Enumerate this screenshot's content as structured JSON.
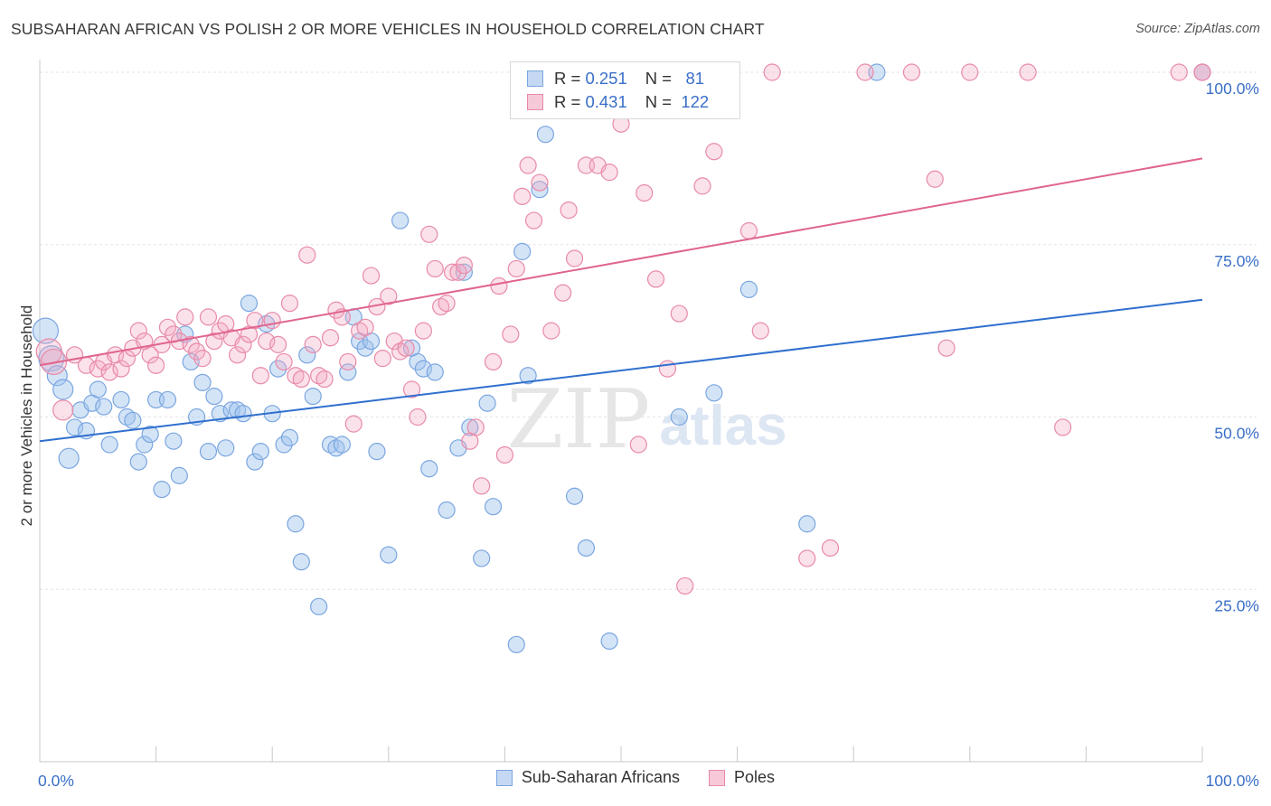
{
  "chart_data": {
    "type": "scatter",
    "title": "SUBSAHARAN AFRICAN VS POLISH 2 OR MORE VEHICLES IN HOUSEHOLD CORRELATION CHART",
    "source": "Source: ZipAtlas.com",
    "xlabel": "",
    "ylabel": "2 or more Vehicles in Household",
    "xlim": [
      0,
      100
    ],
    "ylim": [
      0,
      103
    ],
    "x_tick_labels": [
      "0.0%",
      "100.0%"
    ],
    "y_tick_labels": [
      {
        "value": 25,
        "label": "25.0%"
      },
      {
        "value": 50,
        "label": "50.0%"
      },
      {
        "value": 75,
        "label": "75.0%"
      },
      {
        "value": 100,
        "label": "100.0%"
      }
    ],
    "watermark": {
      "zip": "ZIP",
      "atlas": "atlas"
    },
    "legend": {
      "r_label": "R =",
      "n_label": "N =",
      "entries": [
        {
          "name": "Sub-Saharan Africans",
          "r": "0.251",
          "n": "81",
          "color": "#7aa6e0",
          "fill": "#c5d8f3"
        },
        {
          "name": "Poles",
          "r": "0.431",
          "n": "122",
          "color": "#e88aa8",
          "fill": "#f7c9d8"
        }
      ]
    },
    "series": [
      {
        "name": "Sub-Saharan Africans",
        "color": "#7aa6e0",
        "line_color": "#2f6fce",
        "trend": {
          "x0": 0,
          "y0": 46.5,
          "x1": 100,
          "y1": 67
        },
        "points": [
          [
            0.5,
            62.5
          ],
          [
            1.0,
            58.5
          ],
          [
            1.5,
            56
          ],
          [
            2,
            54
          ],
          [
            2.5,
            44
          ],
          [
            3,
            48.5
          ],
          [
            3.5,
            51
          ],
          [
            4,
            48
          ],
          [
            4.5,
            52
          ],
          [
            5,
            54
          ],
          [
            5.5,
            51.5
          ],
          [
            6,
            46
          ],
          [
            7,
            52.5
          ],
          [
            7.5,
            50
          ],
          [
            8,
            49.5
          ],
          [
            8.5,
            43.5
          ],
          [
            9,
            46
          ],
          [
            9.5,
            47.5
          ],
          [
            10,
            52.5
          ],
          [
            10.5,
            39.5
          ],
          [
            11,
            52.5
          ],
          [
            11.5,
            46.5
          ],
          [
            12,
            41.5
          ],
          [
            12.5,
            62
          ],
          [
            13,
            58
          ],
          [
            13.5,
            50
          ],
          [
            14,
            55
          ],
          [
            14.5,
            45
          ],
          [
            15,
            53
          ],
          [
            15.5,
            50.5
          ],
          [
            16,
            45.5
          ],
          [
            16.5,
            51
          ],
          [
            17,
            51
          ],
          [
            17.5,
            50.5
          ],
          [
            18,
            66.5
          ],
          [
            18.5,
            43.5
          ],
          [
            19,
            45
          ],
          [
            19.5,
            63.5
          ],
          [
            20,
            50.5
          ],
          [
            20.5,
            57
          ],
          [
            21,
            46
          ],
          [
            21.5,
            47
          ],
          [
            22,
            34.5
          ],
          [
            22.5,
            29
          ],
          [
            23,
            59
          ],
          [
            23.5,
            53
          ],
          [
            24,
            22.5
          ],
          [
            25,
            46
          ],
          [
            25.5,
            45.5
          ],
          [
            26,
            46
          ],
          [
            26.5,
            56.5
          ],
          [
            27,
            64.5
          ],
          [
            27.5,
            61
          ],
          [
            28,
            60
          ],
          [
            28.5,
            61
          ],
          [
            29,
            45
          ],
          [
            30,
            30
          ],
          [
            31,
            78.5
          ],
          [
            32,
            60
          ],
          [
            32.5,
            58
          ],
          [
            33,
            57
          ],
          [
            33.5,
            42.5
          ],
          [
            34,
            56.5
          ],
          [
            35,
            36.5
          ],
          [
            36,
            45.5
          ],
          [
            36.5,
            71
          ],
          [
            37,
            48.5
          ],
          [
            38,
            29.5
          ],
          [
            38.5,
            52
          ],
          [
            39,
            37
          ],
          [
            41,
            17
          ],
          [
            41.5,
            74
          ],
          [
            42,
            56
          ],
          [
            43,
            83
          ],
          [
            43.5,
            91
          ],
          [
            46,
            38.5
          ],
          [
            47,
            31
          ],
          [
            49,
            17.5
          ],
          [
            55,
            50
          ],
          [
            58,
            53.5
          ],
          [
            61,
            68.5
          ],
          [
            66,
            34.5
          ],
          [
            72,
            100
          ],
          [
            100,
            100
          ]
        ]
      },
      {
        "name": "Poles",
        "color": "#e88aa8",
        "line_color": "#e0648e",
        "trend": {
          "x0": 0,
          "y0": 57.5,
          "x1": 100,
          "y1": 87.5
        },
        "points": [
          [
            0.8,
            59.5
          ],
          [
            1.2,
            58
          ],
          [
            2,
            51
          ],
          [
            3,
            59
          ],
          [
            4,
            57.5
          ],
          [
            5,
            57
          ],
          [
            5.5,
            58
          ],
          [
            6,
            56.5
          ],
          [
            6.5,
            59
          ],
          [
            7,
            57
          ],
          [
            7.5,
            58.5
          ],
          [
            8,
            60
          ],
          [
            8.5,
            62.5
          ],
          [
            9,
            61
          ],
          [
            9.5,
            59
          ],
          [
            10,
            57.5
          ],
          [
            10.5,
            60.5
          ],
          [
            11,
            63
          ],
          [
            11.5,
            62
          ],
          [
            12,
            61
          ],
          [
            12.5,
            64.5
          ],
          [
            13,
            60.5
          ],
          [
            13.5,
            59.5
          ],
          [
            14,
            58.5
          ],
          [
            14.5,
            64.5
          ],
          [
            15,
            61
          ],
          [
            15.5,
            62.5
          ],
          [
            16,
            63.5
          ],
          [
            16.5,
            61.5
          ],
          [
            17,
            59
          ],
          [
            17.5,
            60.5
          ],
          [
            18,
            62
          ],
          [
            18.5,
            64
          ],
          [
            19,
            56
          ],
          [
            19.5,
            61
          ],
          [
            20,
            64
          ],
          [
            20.5,
            60.5
          ],
          [
            21,
            58
          ],
          [
            21.5,
            66.5
          ],
          [
            22,
            56
          ],
          [
            22.5,
            55.5
          ],
          [
            23,
            73.5
          ],
          [
            23.5,
            60.5
          ],
          [
            24,
            56
          ],
          [
            24.5,
            55.5
          ],
          [
            25,
            61.5
          ],
          [
            25.5,
            65.5
          ],
          [
            26,
            64.5
          ],
          [
            26.5,
            58
          ],
          [
            27,
            49
          ],
          [
            27.5,
            62.5
          ],
          [
            28,
            63
          ],
          [
            28.5,
            70.5
          ],
          [
            29,
            66
          ],
          [
            29.5,
            58.5
          ],
          [
            30,
            67.5
          ],
          [
            30.5,
            61
          ],
          [
            31,
            59.5
          ],
          [
            31.5,
            60
          ],
          [
            32,
            54
          ],
          [
            32.5,
            50
          ],
          [
            33,
            62.5
          ],
          [
            33.5,
            76.5
          ],
          [
            34,
            71.5
          ],
          [
            34.5,
            66
          ],
          [
            35,
            66.5
          ],
          [
            35.5,
            71
          ],
          [
            36,
            71
          ],
          [
            36.5,
            72
          ],
          [
            37,
            46.5
          ],
          [
            37.5,
            48.5
          ],
          [
            38,
            40
          ],
          [
            39,
            58
          ],
          [
            39.5,
            69
          ],
          [
            40,
            44.5
          ],
          [
            40.5,
            62
          ],
          [
            41,
            71.5
          ],
          [
            41.5,
            82
          ],
          [
            42,
            86.5
          ],
          [
            42.5,
            78.5
          ],
          [
            43,
            84
          ],
          [
            44,
            62.5
          ],
          [
            44.5,
            95
          ],
          [
            45,
            68
          ],
          [
            45.5,
            80
          ],
          [
            46,
            73
          ],
          [
            47,
            86.5
          ],
          [
            47.5,
            100
          ],
          [
            48,
            86.5
          ],
          [
            49,
            85.5
          ],
          [
            50,
            92.5
          ],
          [
            51,
            100
          ],
          [
            51.5,
            46
          ],
          [
            52,
            82.5
          ],
          [
            53,
            70
          ],
          [
            54,
            57
          ],
          [
            55,
            65
          ],
          [
            55.5,
            25.5
          ],
          [
            57,
            83.5
          ],
          [
            58,
            88.5
          ],
          [
            61,
            77
          ],
          [
            62,
            62.5
          ],
          [
            63,
            100
          ],
          [
            66,
            29.5
          ],
          [
            68,
            31
          ],
          [
            71,
            100
          ],
          [
            75,
            100
          ],
          [
            77,
            84.5
          ],
          [
            78,
            60
          ],
          [
            80,
            100
          ],
          [
            85,
            100
          ],
          [
            88,
            48.5
          ],
          [
            100,
            100
          ],
          [
            98,
            100
          ],
          [
            100,
            100
          ]
        ]
      }
    ]
  }
}
